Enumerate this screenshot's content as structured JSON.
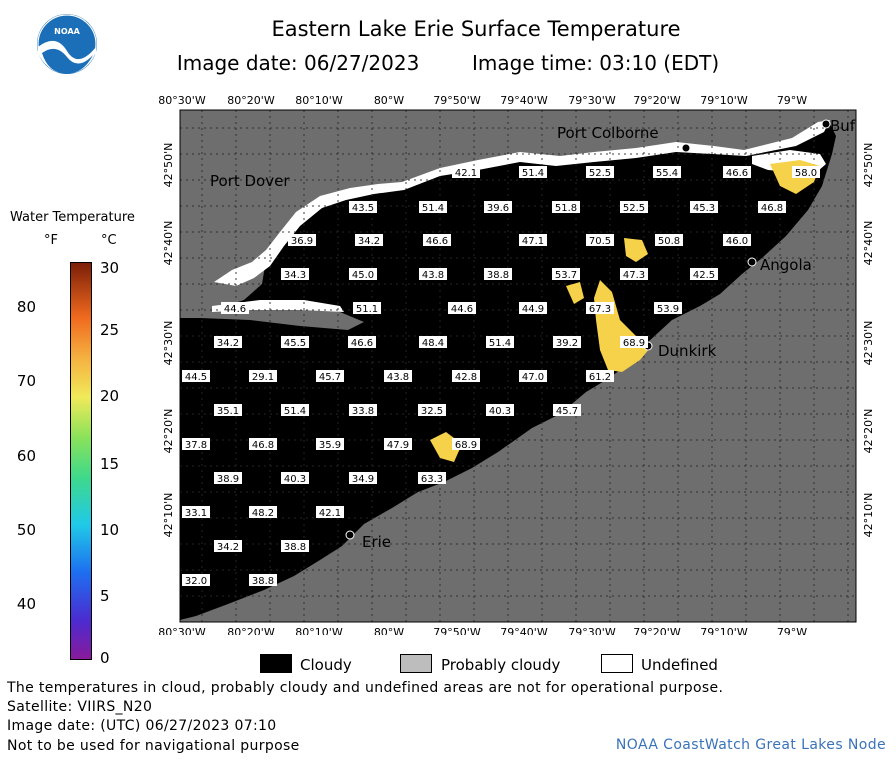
{
  "header": {
    "title": "Eastern Lake Erie Surface Temperature",
    "image_date": "Image date: 06/27/2023",
    "image_time": "Image time: 03:10 (EDT)"
  },
  "logo": {
    "text": "NOAA",
    "icon": "noaa-logo"
  },
  "legend": {
    "title": "Water Temperature",
    "unit_f": "°F",
    "unit_c": "°C",
    "f_ticks": [
      "80",
      "70",
      "60",
      "50",
      "40"
    ],
    "c_ticks": [
      "30",
      "25",
      "20",
      "15",
      "10",
      "5",
      "0"
    ]
  },
  "map": {
    "lon_labels": [
      "80°30'W",
      "80°20'W",
      "80°10'W",
      "80°W",
      "79°50'W",
      "79°40'W",
      "79°30'W",
      "79°20'W",
      "79°10'W",
      "79°W"
    ],
    "lat_labels": [
      "42°50'N",
      "42°40'N",
      "42°30'N",
      "42°20'N",
      "42°10'N"
    ],
    "places": [
      "Port Colborne",
      "Port Dover",
      "Angola",
      "Dunkirk",
      "Erie",
      "Buf"
    ],
    "temperatures": [
      "42.1",
      "51.4",
      "52.5",
      "55.4",
      "46.6",
      "58.0",
      "43.5",
      "51.4",
      "39.6",
      "51.8",
      "52.5",
      "45.3",
      "46.8",
      "36.9",
      "34.2",
      "46.6",
      "47.1",
      "70.5",
      "50.8",
      "46.0",
      "34.3",
      "45.0",
      "43.8",
      "38.8",
      "53.7",
      "47.3",
      "42.5",
      "44.6",
      "51.1",
      "44.6",
      "44.9",
      "67.3",
      "53.9",
      "34.2",
      "45.5",
      "46.6",
      "48.4",
      "51.4",
      "39.2",
      "68.9",
      "44.5",
      "29.1",
      "45.7",
      "43.8",
      "42.8",
      "47.0",
      "61.2",
      "35.1",
      "51.4",
      "33.8",
      "32.5",
      "40.3",
      "45.7",
      "37.8",
      "46.8",
      "35.9",
      "47.9",
      "68.9",
      "38.9",
      "40.3",
      "34.9",
      "63.3",
      "33.1",
      "48.2",
      "42.1",
      "34.2",
      "38.8",
      "32.0",
      "38.8"
    ]
  },
  "key": {
    "cloudy": "Cloudy",
    "probably_cloudy": "Probably cloudy",
    "undefined": "Undefined",
    "colors": {
      "cloudy": "#000000",
      "probably_cloudy": "#bdbdbd",
      "undefined": "#ffffff",
      "land": "#6e6e6e"
    }
  },
  "footer": {
    "disclaimer": "The temperatures in cloud, probably cloudy and undefined areas are not for operational purpose.",
    "satellite": "Satellite: VIIRS_N20",
    "utc_date": "Image date: (UTC) 06/27/2023  07:10",
    "navigation": "Not to be used for navigational purpose",
    "credit": "NOAA CoastWatch Great Lakes Node"
  }
}
